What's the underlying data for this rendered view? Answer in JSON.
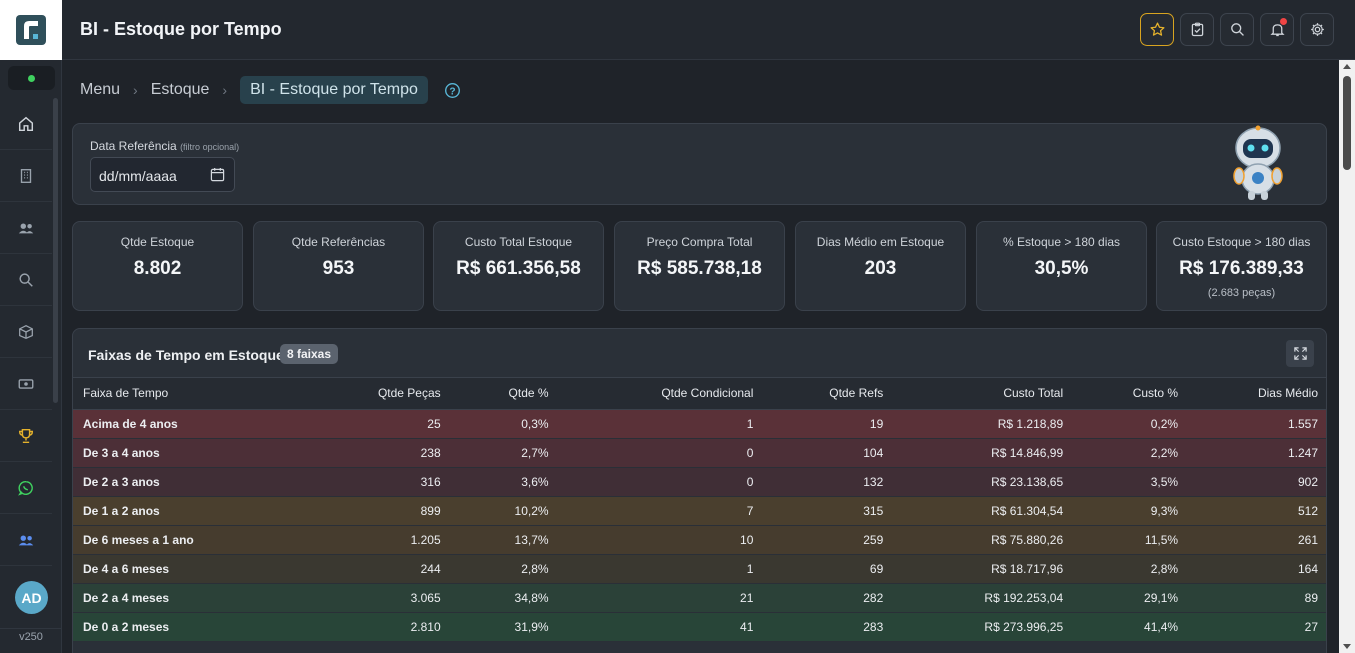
{
  "app": {
    "title": "BI - Estoque por Tempo",
    "version": "v250",
    "user_initials": "AD"
  },
  "header": {
    "buttons": [
      {
        "name": "favorite",
        "icon": "star-icon"
      },
      {
        "name": "tasks",
        "icon": "clipboard-check-icon"
      },
      {
        "name": "search",
        "icon": "search-icon"
      },
      {
        "name": "notifications",
        "icon": "bell-icon"
      },
      {
        "name": "settings",
        "icon": "gear-icon"
      }
    ]
  },
  "sidebar": {
    "items": [
      {
        "name": "home",
        "icon": "home-icon"
      },
      {
        "name": "building",
        "icon": "building-icon"
      },
      {
        "name": "users",
        "icon": "users-icon"
      },
      {
        "name": "search",
        "icon": "search-icon"
      },
      {
        "name": "box",
        "icon": "box-icon"
      },
      {
        "name": "cash",
        "icon": "cash-icon"
      },
      {
        "name": "trophy",
        "icon": "trophy-icon"
      },
      {
        "name": "whatsapp",
        "icon": "whatsapp-icon"
      },
      {
        "name": "team",
        "icon": "team-icon"
      }
    ]
  },
  "breadcrumb": {
    "items": [
      "Menu",
      "Estoque"
    ],
    "current": "BI - Estoque por Tempo"
  },
  "filter": {
    "label": "Data Referência",
    "hint": "(filtro opcional)",
    "placeholder": "dd/mm/aaaa"
  },
  "kpis": [
    {
      "label": "Qtde Estoque",
      "value": "8.802",
      "sub": ""
    },
    {
      "label": "Qtde Referências",
      "value": "953",
      "sub": ""
    },
    {
      "label": "Custo Total Estoque",
      "value": "R$ 661.356,58",
      "sub": ""
    },
    {
      "label": "Preço Compra Total",
      "value": "R$ 585.738,18",
      "sub": ""
    },
    {
      "label": "Dias Médio em Estoque",
      "value": "203",
      "sub": ""
    },
    {
      "label": "% Estoque > 180 dias",
      "value": "30,5%",
      "sub": ""
    },
    {
      "label": "Custo Estoque > 180 dias",
      "value": "R$ 176.389,33",
      "sub": "(2.683 peças)"
    }
  ],
  "table": {
    "title": "Faixas de Tempo em Estoque",
    "badge": "8 faixas",
    "columns": [
      "Faixa de Tempo",
      "Qtde Peças",
      "Qtde %",
      "Qtde Condicional",
      "Qtde Refs",
      "Custo Total",
      "Custo %",
      "Dias Médio"
    ],
    "rows": [
      {
        "cells": [
          "Acima de 4 anos",
          "25",
          "0,3%",
          "1",
          "19",
          "R$ 1.218,89",
          "0,2%",
          "1.557"
        ],
        "color": "#5a3138"
      },
      {
        "cells": [
          "De 3 a 4 anos",
          "238",
          "2,7%",
          "0",
          "104",
          "R$ 14.846,99",
          "2,2%",
          "1.247"
        ],
        "color": "#4c2f37"
      },
      {
        "cells": [
          "De 2 a 3 anos",
          "316",
          "3,6%",
          "0",
          "132",
          "R$ 23.138,65",
          "3,5%",
          "902"
        ],
        "color": "#402e36"
      },
      {
        "cells": [
          "De 1 a 2 anos",
          "899",
          "10,2%",
          "7",
          "315",
          "R$ 61.304,54",
          "9,3%",
          "512"
        ],
        "color": "#4a3f2e"
      },
      {
        "cells": [
          "De 6 meses a 1 ano",
          "1.205",
          "13,7%",
          "10",
          "259",
          "R$ 75.880,26",
          "11,5%",
          "261"
        ],
        "color": "#463c2e"
      },
      {
        "cells": [
          "De 4 a 6 meses",
          "244",
          "2,8%",
          "1",
          "69",
          "R$ 18.717,96",
          "2,8%",
          "164"
        ],
        "color": "#3a3830"
      },
      {
        "cells": [
          "De 2 a 4 meses",
          "3.065",
          "34,8%",
          "21",
          "282",
          "R$ 192.253,04",
          "29,1%",
          "89"
        ],
        "color": "#2b4138"
      },
      {
        "cells": [
          "De 0 a 2 meses",
          "2.810",
          "31,9%",
          "41",
          "283",
          "R$ 273.996,25",
          "41,4%",
          "27"
        ],
        "color": "#284538"
      }
    ]
  },
  "colors": {
    "accent": "#58b6d6",
    "favorite": "#d8a420",
    "status_online": "#3fd15f",
    "notification": "#ef4444"
  }
}
